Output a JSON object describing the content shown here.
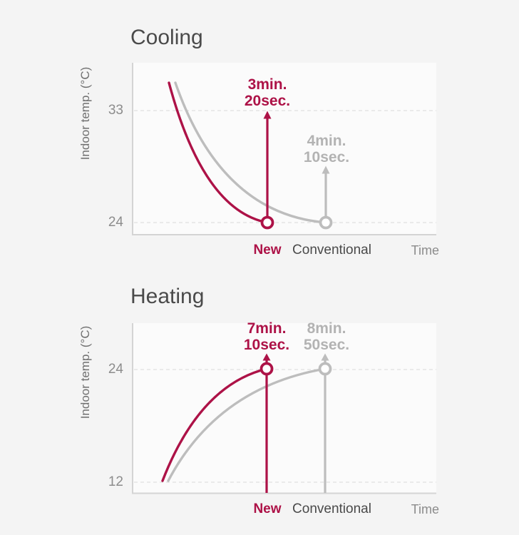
{
  "page": {
    "background": "#f4f4f4",
    "plot_background": "#fbfbfb"
  },
  "colors": {
    "new": "#ad1247",
    "conventional": "#bdbdbd",
    "conventional_text": "#b3b3b3",
    "dark_text": "#4a4a4a",
    "gray_text": "#8c8c8c",
    "axis": "#d4d4d4",
    "gridline": "#d9d9d9"
  },
  "chart_data": [
    {
      "type": "line",
      "title": "Cooling",
      "ylabel": "Indoor temp. (°C)",
      "xlabel": "Time",
      "yticks": [
        33,
        24
      ],
      "start_temp": 35.5,
      "target_temp": 24,
      "grid": "dashed-horizontal",
      "legend_position": "bottom",
      "series": [
        {
          "name": "New",
          "time_min": "3min.",
          "time_sec": "20sec.",
          "time_total_seconds": 200
        },
        {
          "name": "Conventional",
          "time_min": "4min.",
          "time_sec": "10sec.",
          "time_total_seconds": 250
        }
      ]
    },
    {
      "type": "line",
      "title": "Heating",
      "ylabel": "Indoor temp. (°C)",
      "xlabel": "Time",
      "yticks": [
        24,
        12
      ],
      "start_temp": 12,
      "target_temp": 24,
      "grid": "dashed-horizontal",
      "legend_position": "bottom",
      "series": [
        {
          "name": "New",
          "time_min": "7min.",
          "time_sec": "10sec.",
          "time_total_seconds": 430
        },
        {
          "name": "Conventional",
          "time_min": "8min.",
          "time_sec": "50sec.",
          "time_total_seconds": 530
        }
      ]
    }
  ]
}
